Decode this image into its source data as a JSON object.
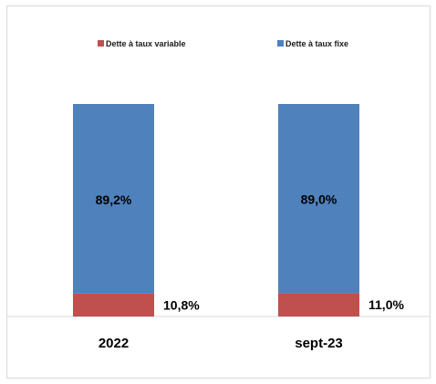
{
  "chart_data": {
    "type": "bar",
    "stacked": true,
    "categories": [
      "2022",
      "sept-23"
    ],
    "series": [
      {
        "name": "Dette à taux variable",
        "color": "#c0504d",
        "values": [
          10.8,
          11.0
        ],
        "labels": [
          "10,8%",
          "11,0%"
        ]
      },
      {
        "name": "Dette à taux fixe",
        "color": "#4f81bd",
        "values": [
          89.2,
          89.0
        ],
        "labels": [
          "89,2%",
          "89,0%"
        ]
      }
    ],
    "ylim": [
      0,
      100
    ],
    "grid": false,
    "legend_position": "top"
  }
}
